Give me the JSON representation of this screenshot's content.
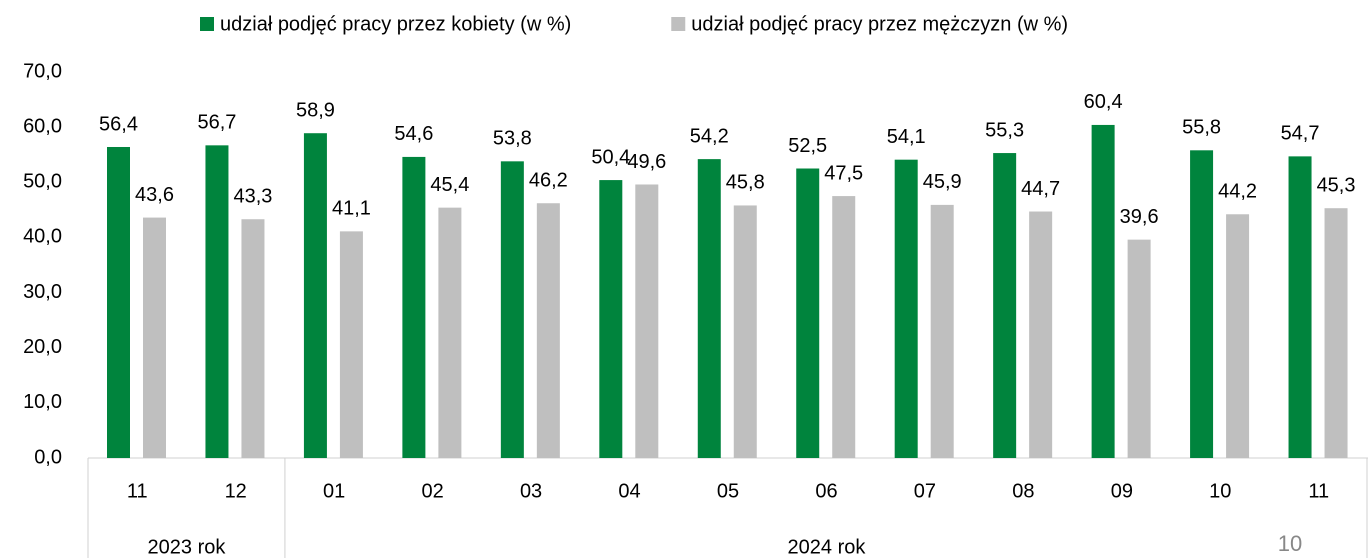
{
  "chart_data": {
    "type": "bar",
    "categories": [
      "11",
      "12",
      "01",
      "02",
      "03",
      "04",
      "05",
      "06",
      "07",
      "08",
      "09",
      "10",
      "11"
    ],
    "groups": [
      {
        "label": "2023 rok",
        "size": 2
      },
      {
        "label": "2024 rok",
        "size": 11
      }
    ],
    "series": [
      {
        "name": "udział podjęć pracy przez kobiety (w %)",
        "color": "#00843d",
        "values": [
          56.4,
          56.7,
          58.9,
          54.6,
          53.8,
          50.4,
          54.2,
          52.5,
          54.1,
          55.3,
          60.4,
          55.8,
          54.7
        ],
        "value_labels": [
          "56,4",
          "56,7",
          "58,9",
          "54,6",
          "53,8",
          "50,4",
          "54,2",
          "52,5",
          "54,1",
          "55,3",
          "60,4",
          "55,8",
          "54,7"
        ]
      },
      {
        "name": "udział podjęć pracy przez mężczyzn (w %)",
        "color": "#bfbfbf",
        "values": [
          43.6,
          43.3,
          41.1,
          45.4,
          46.2,
          49.6,
          45.8,
          47.5,
          45.9,
          44.7,
          39.6,
          44.2,
          45.3
        ],
        "value_labels": [
          "43,6",
          "43,3",
          "41,1",
          "45,4",
          "46,2",
          "49,6",
          "45,8",
          "47,5",
          "45,9",
          "44,7",
          "39,6",
          "44,2",
          "45,3"
        ]
      }
    ],
    "ylim": [
      0,
      70
    ],
    "yticks": [
      {
        "value": 0,
        "label": "0,0"
      },
      {
        "value": 10,
        "label": "10,0"
      },
      {
        "value": 20,
        "label": "20,0"
      },
      {
        "value": 30,
        "label": "30,0"
      },
      {
        "value": 40,
        "label": "40,0"
      },
      {
        "value": 50,
        "label": "50,0"
      },
      {
        "value": 60,
        "label": "60,0"
      },
      {
        "value": 70,
        "label": "70,0"
      }
    ],
    "legend": "top",
    "page_number": "10"
  }
}
